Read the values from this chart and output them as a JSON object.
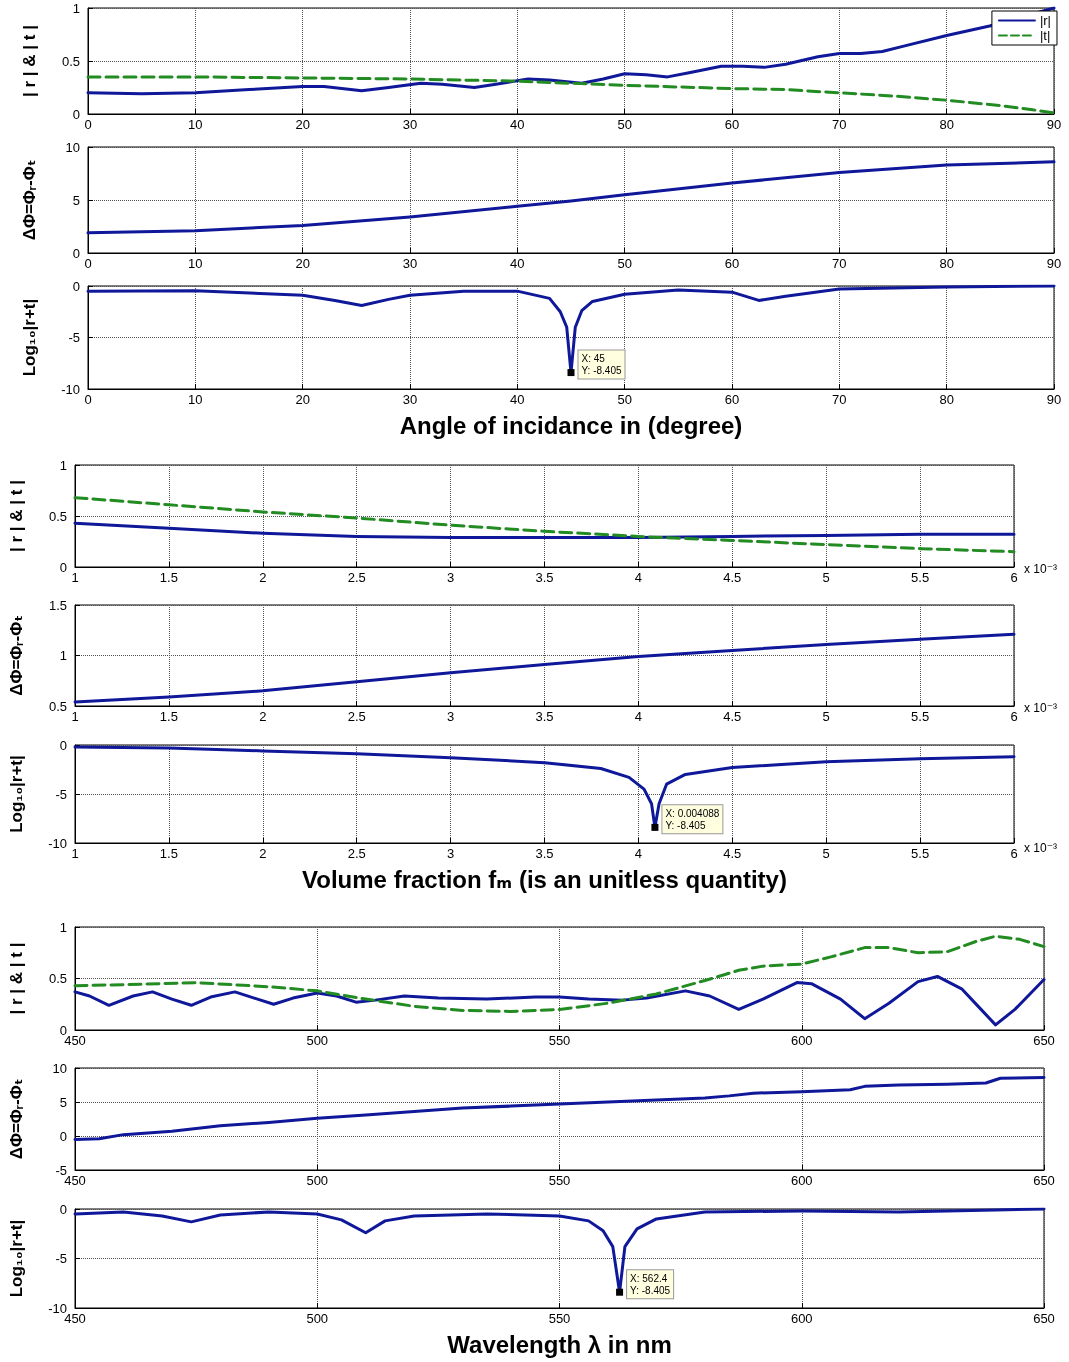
{
  "chart_data": [
    {
      "type": "line",
      "ylabel": "| r | & | t |",
      "x": [
        0,
        5,
        10,
        15,
        20,
        22,
        25.5,
        28,
        31,
        33,
        36,
        38,
        41,
        43,
        46,
        48,
        50,
        52,
        54,
        56,
        59,
        61,
        63,
        65,
        68,
        70,
        72,
        74,
        76,
        80,
        84,
        90
      ],
      "series": [
        {
          "name": "|r|",
          "color": "#10189a",
          "line_style": "solid",
          "values": [
            0.2,
            0.19,
            0.2,
            0.23,
            0.26,
            0.26,
            0.22,
            0.25,
            0.29,
            0.28,
            0.25,
            0.28,
            0.33,
            0.32,
            0.29,
            0.33,
            0.38,
            0.37,
            0.35,
            0.39,
            0.45,
            0.45,
            0.44,
            0.47,
            0.54,
            0.57,
            0.57,
            0.59,
            0.64,
            0.74,
            0.83,
            1.0
          ]
        },
        {
          "name": "|t|",
          "color": "#228b22",
          "line_style": "dashed",
          "x": [
            0,
            10,
            20,
            30,
            40,
            45,
            50,
            60,
            65,
            70,
            75,
            80,
            85,
            88,
            90
          ],
          "values": [
            0.35,
            0.35,
            0.34,
            0.33,
            0.31,
            0.29,
            0.27,
            0.24,
            0.23,
            0.2,
            0.17,
            0.13,
            0.08,
            0.04,
            0.01
          ]
        }
      ],
      "xlim": [
        0,
        90
      ],
      "xticks": [
        0,
        10,
        20,
        30,
        40,
        50,
        60,
        70,
        80,
        90
      ],
      "ylim": [
        0,
        1
      ],
      "yticks": [
        0,
        0.5,
        1
      ],
      "grid": true,
      "legend": "top right"
    },
    {
      "type": "line",
      "ylabel": "ΔΦ=Φᵣ-Φₜ",
      "x": [
        0,
        10,
        20,
        30,
        40,
        45,
        50,
        60,
        70,
        80,
        90
      ],
      "series": [
        {
          "color": "#10189a",
          "line_style": "solid",
          "values": [
            1.9,
            2.1,
            2.6,
            3.4,
            4.4,
            4.9,
            5.5,
            6.6,
            7.6,
            8.3,
            8.6
          ]
        }
      ],
      "xlim": [
        0,
        90
      ],
      "xticks": [
        0,
        10,
        20,
        30,
        40,
        50,
        60,
        70,
        80,
        90
      ],
      "ylim": [
        0,
        10
      ],
      "yticks": [
        0,
        5,
        10
      ],
      "grid": true
    },
    {
      "type": "line",
      "ylabel": "Log₁₀|r+t|",
      "xlabel": "Angle of incidance in (degree)",
      "x": [
        0,
        10,
        20,
        23,
        25.5,
        28,
        30,
        35,
        40,
        43,
        44,
        44.6,
        45,
        45.4,
        46,
        47,
        50,
        55,
        60,
        62.5,
        65,
        70,
        80,
        90
      ],
      "series": [
        {
          "color": "#10189a",
          "line_style": "solid",
          "values": [
            -0.5,
            -0.45,
            -0.9,
            -1.4,
            -1.9,
            -1.3,
            -0.9,
            -0.5,
            -0.5,
            -1.2,
            -2.5,
            -4,
            -8.405,
            -4,
            -2.4,
            -1.5,
            -0.8,
            -0.4,
            -0.6,
            -1.4,
            -1.0,
            -0.3,
            -0.1,
            0
          ]
        }
      ],
      "xlim": [
        0,
        90
      ],
      "xticks": [
        0,
        10,
        20,
        30,
        40,
        50,
        60,
        70,
        80,
        90
      ],
      "ylim": [
        -10,
        0
      ],
      "yticks": [
        -10,
        -5,
        0
      ],
      "grid": true,
      "annotations": [
        {
          "text": "X: 45\nY: -8.405",
          "x": 45,
          "y": -8.405
        }
      ]
    },
    {
      "type": "line",
      "ylabel": "| r | & | t |",
      "x": [
        1,
        1.5,
        2,
        2.5,
        3,
        3.5,
        4,
        4.5,
        5,
        5.5,
        6
      ],
      "series": [
        {
          "color": "#10189a",
          "line_style": "solid",
          "values": [
            0.43,
            0.38,
            0.33,
            0.3,
            0.29,
            0.29,
            0.29,
            0.3,
            0.31,
            0.32,
            0.32
          ]
        },
        {
          "color": "#228b22",
          "line_style": "dashed",
          "values": [
            0.68,
            0.61,
            0.54,
            0.48,
            0.41,
            0.35,
            0.3,
            0.26,
            0.22,
            0.18,
            0.15
          ]
        }
      ],
      "xlim": [
        1,
        6
      ],
      "xticks": [
        1,
        1.5,
        2,
        2.5,
        3,
        3.5,
        4,
        4.5,
        5,
        5.5,
        6
      ],
      "ylim": [
        0,
        1
      ],
      "yticks": [
        0,
        0.5,
        1
      ],
      "grid": true,
      "annotations": [
        "x 10⁻³"
      ]
    },
    {
      "type": "line",
      "ylabel": "ΔΦ=Φᵣ-Φₜ",
      "x": [
        1,
        1.5,
        2,
        2.5,
        3,
        3.5,
        4,
        4.5,
        5,
        5.5,
        6
      ],
      "series": [
        {
          "color": "#10189a",
          "line_style": "solid",
          "values": [
            0.54,
            0.59,
            0.65,
            0.74,
            0.83,
            0.91,
            0.99,
            1.05,
            1.11,
            1.16,
            1.21
          ]
        }
      ],
      "xlim": [
        1,
        6
      ],
      "xticks": [
        1,
        1.5,
        2,
        2.5,
        3,
        3.5,
        4,
        4.5,
        5,
        5.5,
        6
      ],
      "ylim": [
        0.5,
        1.5
      ],
      "yticks": [
        0.5,
        1,
        1.5
      ],
      "grid": true,
      "annotations": [
        "x 10⁻³"
      ]
    },
    {
      "type": "line",
      "ylabel": "Log₁₀|r+t|",
      "xlabel": "Volume fraction fₘ (is an unitless quantity)",
      "x": [
        1,
        1.5,
        2,
        2.5,
        3,
        3.5,
        3.8,
        3.95,
        4.03,
        4.07,
        4.088,
        4.11,
        4.15,
        4.25,
        4.5,
        5,
        5.5,
        6
      ],
      "series": [
        {
          "color": "#10189a",
          "line_style": "solid",
          "values": [
            -0.2,
            -0.3,
            -0.6,
            -0.9,
            -1.3,
            -1.8,
            -2.4,
            -3.3,
            -4.5,
            -6,
            -8.405,
            -6,
            -4,
            -3,
            -2.3,
            -1.7,
            -1.4,
            -1.2
          ]
        }
      ],
      "xlim": [
        1,
        6
      ],
      "xticks": [
        1,
        1.5,
        2,
        2.5,
        3,
        3.5,
        4,
        4.5,
        5,
        5.5,
        6
      ],
      "ylim": [
        -10,
        0
      ],
      "yticks": [
        -10,
        -5,
        0
      ],
      "grid": true,
      "annotations": [
        "x 10⁻³",
        {
          "text": "X: 0.004088\nY: -8.405",
          "x": 4.088,
          "y": -8.405
        }
      ]
    },
    {
      "type": "line",
      "ylabel": "| r | & | t |",
      "x": [
        450,
        453,
        457,
        462,
        466,
        470,
        474,
        478,
        483,
        487,
        491,
        495,
        500,
        504,
        508,
        512,
        518,
        525,
        535,
        545,
        550,
        556,
        563,
        568,
        576,
        581,
        587,
        592,
        599,
        602,
        608,
        613,
        618,
        624,
        628,
        633,
        637,
        640,
        644,
        650
      ],
      "series": [
        {
          "color": "#10189a",
          "line_style": "solid",
          "values": [
            0.37,
            0.33,
            0.24,
            0.33,
            0.37,
            0.3,
            0.24,
            0.32,
            0.37,
            0.31,
            0.25,
            0.31,
            0.36,
            0.33,
            0.27,
            0.29,
            0.33,
            0.31,
            0.3,
            0.32,
            0.32,
            0.3,
            0.29,
            0.31,
            0.38,
            0.33,
            0.2,
            0.3,
            0.46,
            0.45,
            0.3,
            0.11,
            0.26,
            0.47,
            0.52,
            0.4,
            0.2,
            0.05,
            0.2,
            0.49
          ]
        },
        {
          "color": "#228b22",
          "line_style": "dashed",
          "x": [
            450,
            460,
            475,
            490,
            500,
            510,
            520,
            530,
            540,
            550,
            560,
            570,
            580,
            587,
            592,
            600,
            606,
            613,
            618,
            624,
            630,
            636,
            640,
            645,
            650
          ],
          "values": [
            0.43,
            0.44,
            0.46,
            0.42,
            0.38,
            0.3,
            0.23,
            0.19,
            0.18,
            0.2,
            0.26,
            0.35,
            0.48,
            0.58,
            0.62,
            0.64,
            0.71,
            0.8,
            0.8,
            0.75,
            0.76,
            0.86,
            0.91,
            0.88,
            0.81
          ]
        }
      ],
      "xlim": [
        450,
        650
      ],
      "xticks": [
        450,
        500,
        550,
        600,
        650
      ],
      "ylim": [
        0,
        1
      ],
      "yticks": [
        0,
        0.5,
        1
      ],
      "grid": true
    },
    {
      "type": "line",
      "ylabel": "ΔΦ=Φᵣ-Φₜ",
      "x": [
        450,
        455,
        460,
        470,
        480,
        490,
        500,
        510,
        520,
        530,
        540,
        550,
        560,
        570,
        580,
        585,
        590,
        600,
        610,
        613,
        620,
        630,
        638,
        641,
        650
      ],
      "series": [
        {
          "color": "#10189a",
          "line_style": "solid",
          "values": [
            -0.5,
            -0.4,
            0.2,
            0.7,
            1.5,
            2.0,
            2.6,
            3.1,
            3.6,
            4.1,
            4.4,
            4.7,
            5.0,
            5.3,
            5.6,
            5.9,
            6.3,
            6.5,
            6.8,
            7.3,
            7.5,
            7.6,
            7.8,
            8.5,
            8.6
          ]
        }
      ],
      "xlim": [
        450,
        650
      ],
      "xticks": [
        450,
        500,
        550,
        600,
        650
      ],
      "ylim": [
        -5,
        10
      ],
      "yticks": [
        -5,
        0,
        5,
        10
      ],
      "grid": true
    },
    {
      "type": "line",
      "ylabel": "Log₁₀|r+t|",
      "xlabel": "Wavelength λ in nm",
      "x": [
        450,
        460,
        468,
        474,
        480,
        490,
        500,
        505,
        510,
        514,
        520,
        535,
        550,
        556,
        559,
        561,
        562.4,
        563.5,
        566,
        570,
        580,
        600,
        620,
        640,
        650
      ],
      "series": [
        {
          "color": "#10189a",
          "line_style": "solid",
          "values": [
            -0.5,
            -0.3,
            -0.7,
            -1.3,
            -0.6,
            -0.3,
            -0.5,
            -1.1,
            -2.4,
            -1.2,
            -0.7,
            -0.5,
            -0.7,
            -1.2,
            -2.2,
            -3.8,
            -8.405,
            -3.8,
            -2,
            -1,
            -0.3,
            -0.2,
            -0.3,
            -0.1,
            0
          ]
        }
      ],
      "xlim": [
        450,
        650
      ],
      "xticks": [
        450,
        500,
        550,
        600,
        650
      ],
      "ylim": [
        -10,
        0
      ],
      "yticks": [
        -10,
        -5,
        0
      ],
      "grid": true,
      "annotations": [
        {
          "text": "X: 562.4\nY: -8.405",
          "x": 562.4,
          "y": -8.405
        }
      ]
    }
  ]
}
